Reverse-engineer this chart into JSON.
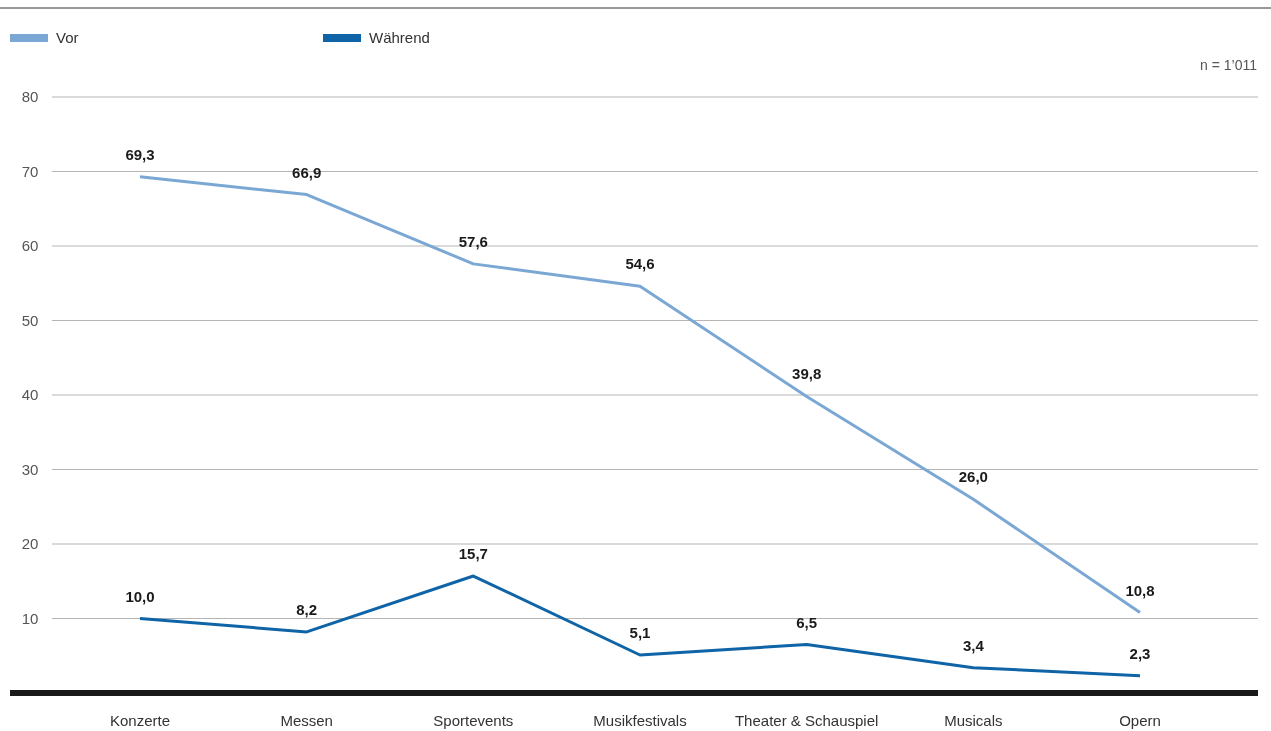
{
  "chart_data": {
    "type": "line",
    "categories": [
      "Konzerte",
      "Messen",
      "Sportevents",
      "Musikfestivals",
      "Theater & Schauspiel",
      "Musicals",
      "Opern"
    ],
    "series": [
      {
        "name": "Vor",
        "color": "#7ba7d4",
        "values": [
          69.3,
          66.9,
          57.6,
          54.6,
          39.8,
          26.0,
          10.8
        ],
        "value_labels": [
          "69,3",
          "66,9",
          "57,6",
          "54,6",
          "39,8",
          "26,0",
          "10,8"
        ]
      },
      {
        "name": "Während",
        "color": "#0e64a6",
        "values": [
          10.0,
          8.2,
          15.7,
          5.1,
          6.5,
          3.4,
          2.3
        ],
        "value_labels": [
          "10,0",
          "8,2",
          "15,7",
          "5,1",
          "6,5",
          "3,4",
          "2,3"
        ]
      }
    ],
    "ylim": [
      0,
      80
    ],
    "yticks": [
      10,
      20,
      30,
      40,
      50,
      60,
      70,
      80
    ],
    "grid": "y",
    "legend": "top left",
    "marker": "none",
    "line_style": "solid",
    "annotations": [
      "n = 1’011"
    ]
  }
}
